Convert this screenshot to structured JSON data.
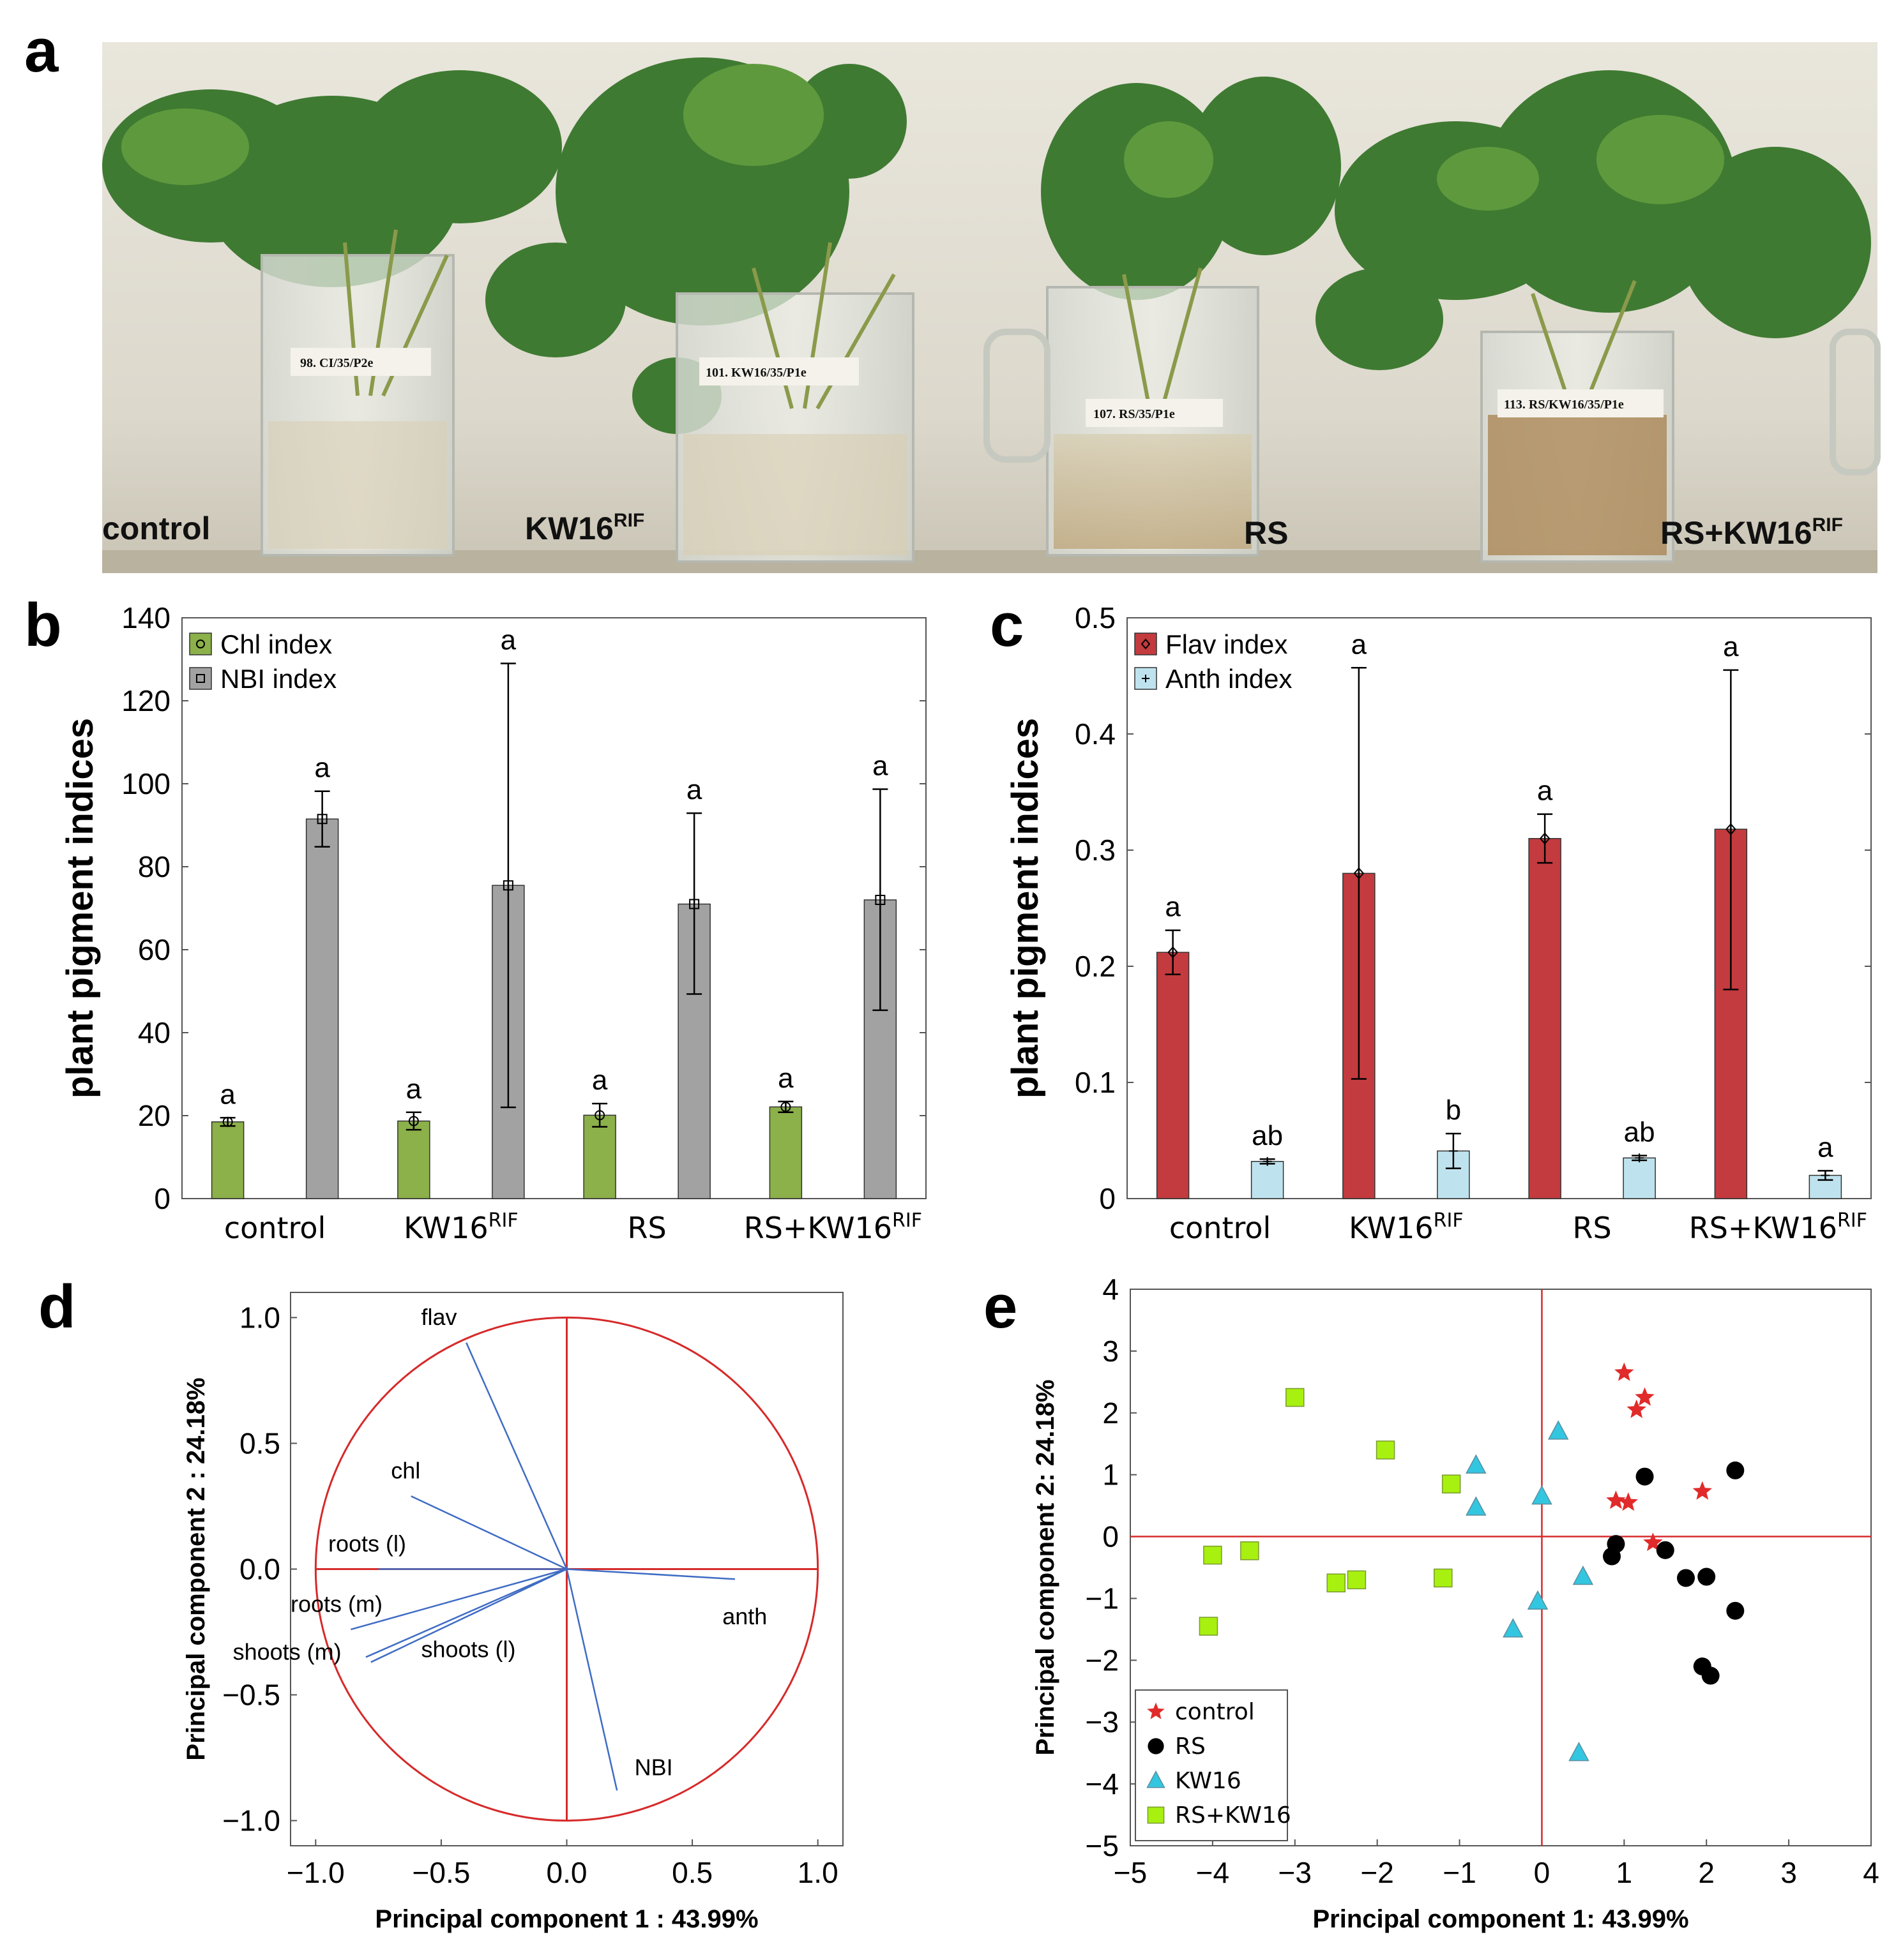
{
  "panel_letters": [
    "a",
    "b",
    "c",
    "d",
    "e"
  ],
  "colors": {
    "chl": "#8cb04a",
    "nbi": "#a2a2a2",
    "flav": "#c33b3e",
    "anth": "#bfe3ee",
    "circle": "#d62a2a",
    "vectors": "#3f6cc4",
    "control": "#e12a2a",
    "rs": "#000000",
    "kw16": "#33c6e0",
    "rskw16": "#a8f010"
  },
  "photo": {
    "labels": [
      {
        "text": "control",
        "sup": ""
      },
      {
        "text": "KW16",
        "sup": "RIF"
      },
      {
        "text": "RS",
        "sup": ""
      },
      {
        "text": "RS+KW16",
        "sup": "RIF"
      }
    ],
    "tags": [
      "98. CI/35/P2e",
      "101. KW16/35/P1e",
      "107. RS/35/P1e",
      "113. RS/KW16/35/P1e"
    ]
  },
  "chart_data": [
    {
      "panel": "b",
      "type": "bar",
      "ylabel": "plant pigment indices",
      "ylim": [
        0,
        140
      ],
      "yticks": [
        "0",
        "20",
        "40",
        "60",
        "80",
        "100",
        "120",
        "140"
      ],
      "categories": [
        {
          "text": "control",
          "sup": ""
        },
        {
          "text": "KW16",
          "sup": "RIF"
        },
        {
          "text": "RS",
          "sup": ""
        },
        {
          "text": "RS+KW16",
          "sup": "RIF"
        }
      ],
      "legend": {
        "placement": "top-left"
      },
      "series": [
        {
          "name": "Chl index",
          "values": [
            18.5,
            18.7,
            20.1,
            22.1
          ],
          "err_low": [
            17.5,
            16.6,
            17.3,
            20.8
          ],
          "err_high": [
            19.5,
            20.8,
            22.9,
            23.4
          ],
          "letters": [
            "a",
            "a",
            "a",
            "a"
          ]
        },
        {
          "name": "NBI index",
          "values": [
            91.5,
            75.5,
            71.0,
            72.0
          ],
          "err_low": [
            84.8,
            22.0,
            49.3,
            45.4
          ],
          "err_high": [
            98.2,
            129.0,
            92.9,
            98.7
          ],
          "letters": [
            "a",
            "a",
            "a",
            "a"
          ]
        }
      ]
    },
    {
      "panel": "c",
      "type": "bar",
      "ylabel": "plant pigment indices",
      "ylim": [
        0,
        0.5
      ],
      "yticks": [
        "0",
        "0.1",
        "0.2",
        "0.3",
        "0.4",
        "0.5"
      ],
      "categories": [
        {
          "text": "control",
          "sup": ""
        },
        {
          "text": "KW16",
          "sup": "RIF"
        },
        {
          "text": "RS",
          "sup": ""
        },
        {
          "text": "RS+KW16",
          "sup": "RIF"
        }
      ],
      "legend": {
        "placement": "top-left"
      },
      "series": [
        {
          "name": "Flav index",
          "values": [
            0.212,
            0.28,
            0.31,
            0.318
          ],
          "err_low": [
            0.193,
            0.103,
            0.289,
            0.18
          ],
          "err_high": [
            0.231,
            0.457,
            0.331,
            0.455
          ],
          "letters": [
            "a",
            "a",
            "a",
            "a"
          ]
        },
        {
          "name": "Anth index",
          "values": [
            0.032,
            0.041,
            0.035,
            0.02
          ],
          "err_low": [
            0.03,
            0.026,
            0.033,
            0.016
          ],
          "err_high": [
            0.034,
            0.056,
            0.037,
            0.024
          ],
          "letters": [
            "ab",
            "b",
            "ab",
            "a"
          ]
        }
      ]
    },
    {
      "panel": "d",
      "type": "scatter",
      "subtype": "pca-loadings",
      "xlabel": "Principal component 1 : 43.99%",
      "ylabel": "Principal component 2 : 24.18%",
      "xlim": [
        -1.1,
        1.1
      ],
      "ylim": [
        -1.1,
        1.1
      ],
      "xticks": [
        "−1.0",
        "−0.5",
        "0.0",
        "0.5",
        "1.0"
      ],
      "yticks": [
        "−1.0",
        "−0.5",
        "0.0",
        "0.5",
        "1.0"
      ],
      "vectors": [
        {
          "name": "flav",
          "x": -0.4,
          "y": 0.9
        },
        {
          "name": "chl",
          "x": -0.62,
          "y": 0.29
        },
        {
          "name": "roots (l)",
          "x": -0.75,
          "y": 0.0
        },
        {
          "name": "roots (m)",
          "x": -0.86,
          "y": -0.24
        },
        {
          "name": "shoots (m)",
          "x": -0.8,
          "y": -0.35
        },
        {
          "name": "shoots (l)",
          "x": -0.78,
          "y": -0.37
        },
        {
          "name": "anth",
          "x": 0.67,
          "y": -0.04
        },
        {
          "name": "NBI",
          "x": 0.2,
          "y": -0.88
        }
      ]
    },
    {
      "panel": "e",
      "type": "scatter",
      "xlabel": "Principal component 1: 43.99%",
      "ylabel": "Principal component 2: 24.18%",
      "xlim": [
        -5,
        4
      ],
      "ylim": [
        -5,
        4
      ],
      "xticks": [
        "−5",
        "−4",
        "−3",
        "−2",
        "−1",
        "0",
        "1",
        "2",
        "3",
        "4"
      ],
      "yticks": [
        "−5",
        "−4",
        "−3",
        "−2",
        "−1",
        "0",
        "1",
        "2",
        "3",
        "4"
      ],
      "legend": {
        "placement": "bottom-left"
      },
      "series": [
        {
          "name": "control",
          "marker": "star",
          "points": [
            [
              1.0,
              2.65
            ],
            [
              1.25,
              2.25
            ],
            [
              1.15,
              2.05
            ],
            [
              0.9,
              0.58
            ],
            [
              1.05,
              0.55
            ],
            [
              1.95,
              0.73
            ],
            [
              1.35,
              -0.1
            ]
          ]
        },
        {
          "name": "RS",
          "marker": "circle",
          "points": [
            [
              1.25,
              0.97
            ],
            [
              2.35,
              1.07
            ],
            [
              0.9,
              -0.12
            ],
            [
              0.85,
              -0.32
            ],
            [
              1.5,
              -0.22
            ],
            [
              1.75,
              -0.67
            ],
            [
              2.0,
              -0.65
            ],
            [
              2.35,
              -1.2
            ],
            [
              1.95,
              -2.1
            ],
            [
              2.05,
              -2.25
            ]
          ]
        },
        {
          "name": "KW16",
          "marker": "triangle",
          "points": [
            [
              0.2,
              1.7
            ],
            [
              -0.8,
              1.15
            ],
            [
              -0.8,
              0.47
            ],
            [
              0.0,
              0.65
            ],
            [
              0.5,
              -0.65
            ],
            [
              -0.05,
              -1.05
            ],
            [
              -0.35,
              -1.5
            ],
            [
              0.45,
              -3.5
            ]
          ]
        },
        {
          "name": "RS+KW16",
          "marker": "square",
          "points": [
            [
              -3.0,
              2.25
            ],
            [
              -1.9,
              1.4
            ],
            [
              -1.1,
              0.85
            ],
            [
              -4.0,
              -0.3
            ],
            [
              -3.55,
              -0.23
            ],
            [
              -2.5,
              -0.75
            ],
            [
              -2.25,
              -0.7
            ],
            [
              -1.2,
              -0.67
            ],
            [
              -4.05,
              -1.45
            ]
          ]
        }
      ]
    }
  ]
}
